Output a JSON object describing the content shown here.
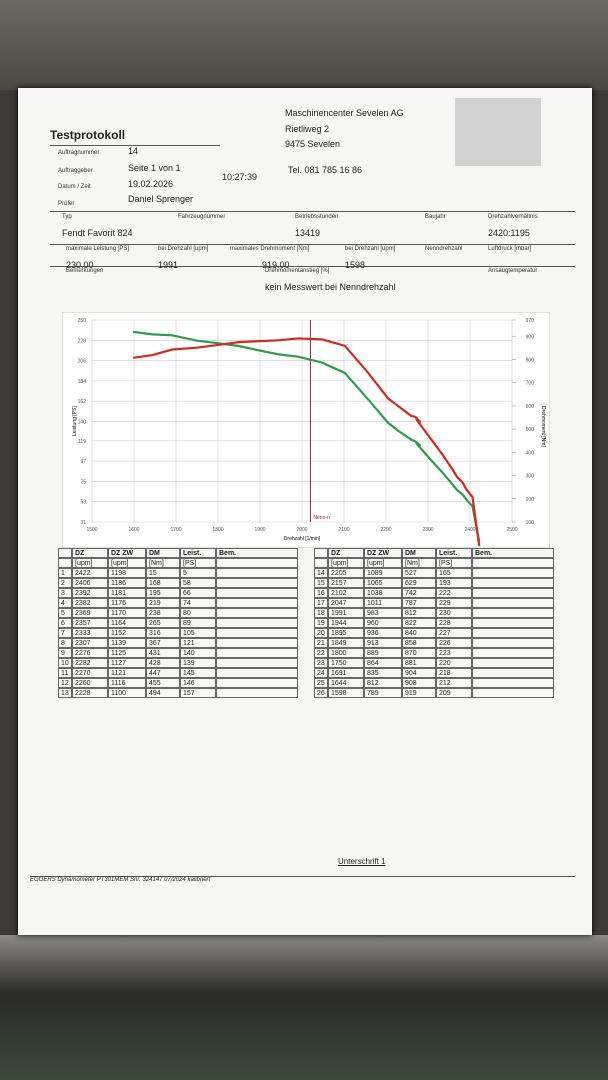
{
  "header": {
    "title": "Testprotokoll",
    "fields": [
      {
        "label": "Auftragnummer",
        "value": 14
      },
      {
        "label": "Auftraggeber",
        "value": "Seite 1 von 1"
      },
      {
        "label": "Datum / Zeit",
        "value": "19.02.2026",
        "time": "10:27:39"
      },
      {
        "label": "Prüfer",
        "value": "Daniel Sprenger"
      }
    ],
    "company": [
      "Maschinencenter Sevelen AG",
      "Rietliweg 2",
      "9475 Sevelen"
    ],
    "phone": "Tel. 081 785 16 86"
  },
  "vehicle": [
    [
      {
        "label": "Typ",
        "value": "Fendt Favorit 824"
      },
      {
        "label": "Fahrzeugnummer"
      },
      {
        "label": "Betriebsstunden",
        "value": 13419
      },
      {
        "label": "Baujahr"
      },
      {
        "label": "Drehzahlverhältnis",
        "value": "2420:1195"
      }
    ],
    [
      {
        "label": "maximale Leistung [PS]",
        "value": "230.00"
      },
      {
        "label": "bei Drehzahl [upm]",
        "value": 1991
      },
      {
        "label": "maximales Drehmoment [Nm]",
        "value": "919.00"
      },
      {
        "label": "bei Drehzahl [upm]",
        "value": 1598
      },
      {
        "label": "Nenndrehzahl"
      },
      {
        "label": "Luftdruck [mbar]"
      }
    ],
    [
      {
        "label": "Bemerkungen"
      },
      {
        "label": "Drehmomentanstieg [%]",
        "value": "kein Messwert bei Nenndrehzahl"
      },
      {
        "label": "Ansaugtemperatur"
      }
    ]
  ],
  "chart": {
    "type": "line",
    "xlabel": "Drehzahl [1/min]",
    "ylabel": "Leistung [PS]",
    "y2label": "Drehmoment [Nm]",
    "xlim": [
      1500,
      2500
    ],
    "xticks": [
      1500,
      1600,
      1700,
      1800,
      1900,
      2000,
      2100,
      2200,
      2300,
      2400,
      2500
    ],
    "ylim": [
      31,
      250
    ],
    "yticks": [
      31,
      53,
      75,
      97,
      119,
      140,
      162,
      184,
      206,
      228,
      250
    ],
    "y2lim": [
      100,
      970
    ],
    "y2ticks": [
      100,
      200,
      300,
      400,
      500,
      600,
      700,
      800,
      900,
      970
    ],
    "nominal": {
      "x": 2020,
      "label": "Nenn-n"
    },
    "series": [
      {
        "color": "#d12a22",
        "axis": "y"
      },
      {
        "color": "#2f9a4c",
        "axis": "y2"
      }
    ],
    "grid": true
  },
  "table": {
    "columns": [
      "DZ",
      "DZ ZW",
      "DM",
      "Leist.",
      "Bem."
    ],
    "units": [
      "[upm]",
      "[upm]",
      "[Nm]",
      "[PS]"
    ],
    "rows": [
      [
        1,
        2422,
        1198,
        15,
        5
      ],
      [
        2,
        2406,
        1186,
        168,
        58
      ],
      [
        3,
        2392,
        1181,
        195,
        66
      ],
      [
        4,
        2382,
        1176,
        219,
        74
      ],
      [
        5,
        2369,
        1170,
        238,
        80
      ],
      [
        6,
        2357,
        1164,
        265,
        89
      ],
      [
        7,
        2333,
        1152,
        316,
        105
      ],
      [
        8,
        2307,
        1139,
        367,
        121
      ],
      [
        9,
        2276,
        1125,
        431,
        140
      ],
      [
        10,
        2282,
        1127,
        428,
        139
      ],
      [
        11,
        2270,
        1121,
        447,
        145
      ],
      [
        12,
        2260,
        1116,
        455,
        146
      ],
      [
        13,
        2228,
        1100,
        494,
        157
      ],
      [
        14,
        2205,
        1089,
        527,
        165
      ],
      [
        15,
        2157,
        1065,
        629,
        193
      ],
      [
        16,
        2102,
        1038,
        742,
        222
      ],
      [
        17,
        2047,
        1011,
        787,
        229
      ],
      [
        18,
        1991,
        983,
        812,
        230
      ],
      [
        19,
        1944,
        960,
        822,
        228
      ],
      [
        20,
        1895,
        936,
        840,
        227
      ],
      [
        21,
        1849,
        913,
        858,
        226
      ],
      [
        22,
        1800,
        889,
        870,
        223
      ],
      [
        23,
        1750,
        864,
        881,
        220
      ],
      [
        24,
        1691,
        835,
        904,
        218
      ],
      [
        25,
        1644,
        812,
        908,
        212
      ],
      [
        26,
        1598,
        789,
        919,
        209
      ]
    ]
  },
  "signature": "Unterschrift 1",
  "footer": "EGGERS Dynamometer PT301MEM Snr. 324147 07/2024 kalibriert"
}
